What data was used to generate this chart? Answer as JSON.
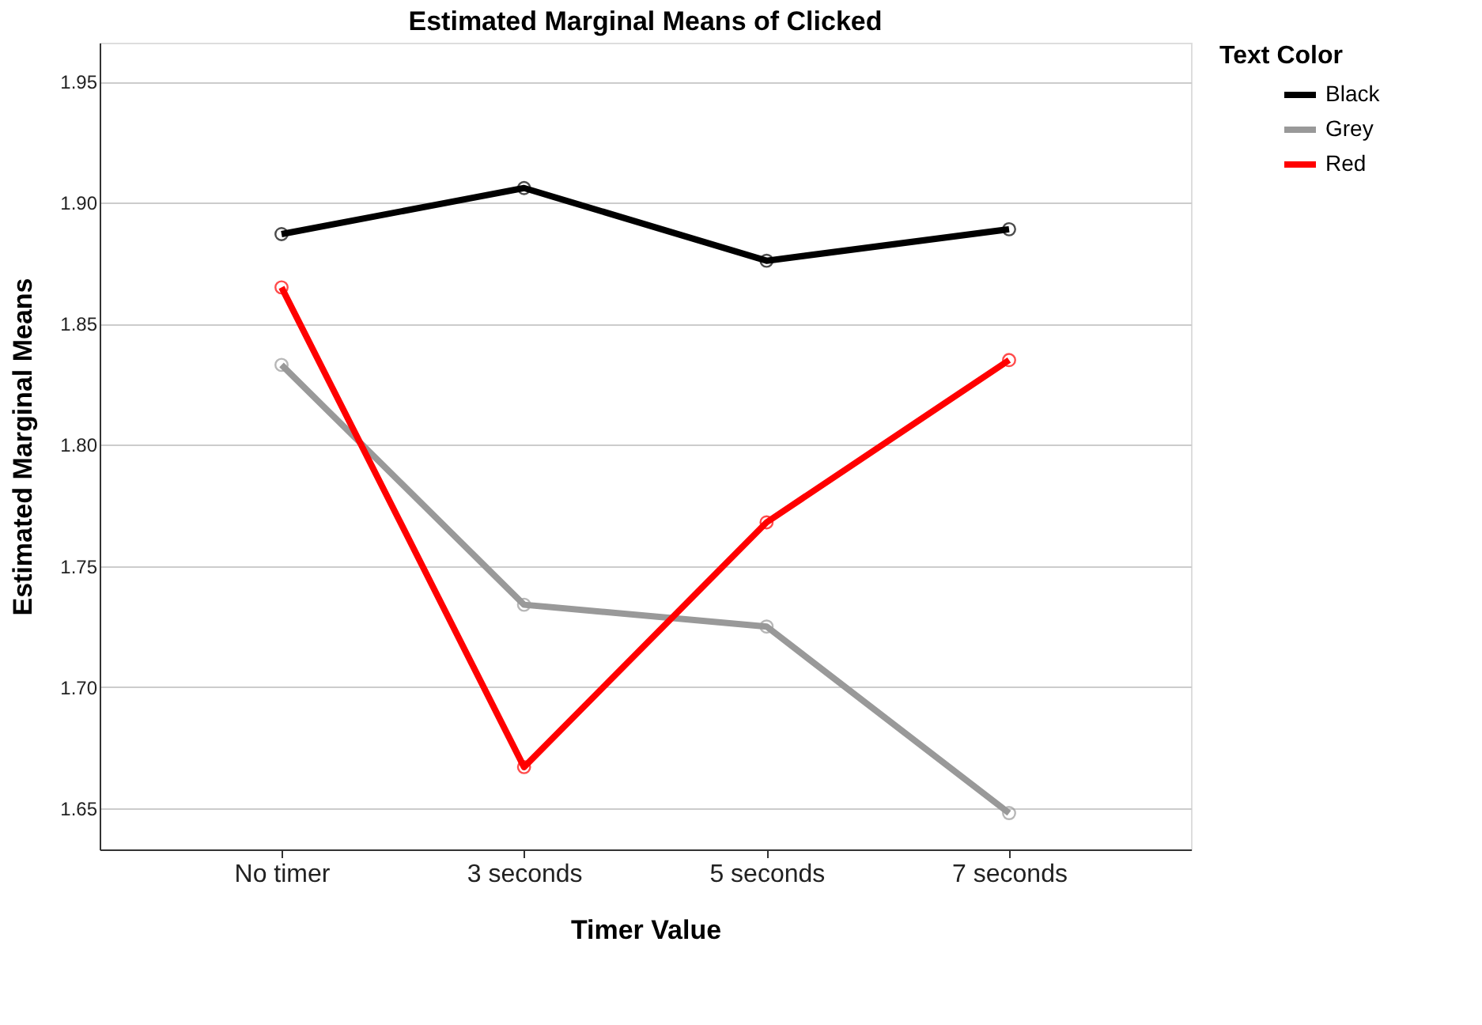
{
  "chart_data": {
    "type": "line",
    "title": "Estimated Marginal Means of Clicked",
    "xlabel": "Timer Value",
    "ylabel": "Estimated Marginal Means",
    "legend_title": "Text Color",
    "categories": [
      "No timer",
      "3 seconds",
      "5 seconds",
      "7 seconds"
    ],
    "series": [
      {
        "name": "Black",
        "color": "#000000",
        "values": [
          1.887,
          1.906,
          1.876,
          1.889
        ]
      },
      {
        "name": "Grey",
        "color": "#999999",
        "values": [
          1.833,
          1.734,
          1.725,
          1.648
        ]
      },
      {
        "name": "Red",
        "color": "#ff0000",
        "values": [
          1.865,
          1.667,
          1.768,
          1.835
        ]
      }
    ],
    "ylim": [
      1.633,
      1.966
    ],
    "yticks": [
      1.65,
      {
        "value": 1.7,
        "label": "1.70"
      },
      1.75,
      {
        "value": 1.8,
        "label": "1.80"
      },
      1.85,
      {
        "value": 1.9,
        "label": "1.90"
      },
      1.95
    ],
    "grid": "y",
    "legend": "top right",
    "marker": "circle",
    "line_style": "solid"
  }
}
